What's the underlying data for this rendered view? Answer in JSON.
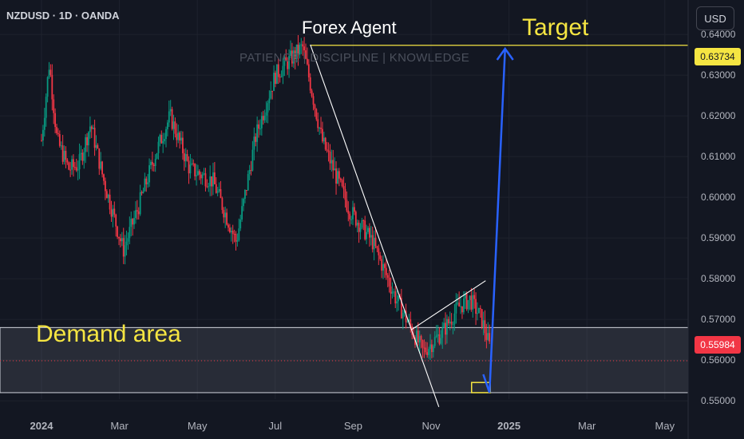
{
  "header": {
    "symbol": "NZDUSD · 1D · OANDA",
    "currency": "USD"
  },
  "watermark": {
    "title": "Forex Agent",
    "subtitle": "PATIENCE | DISCIPLINE | KNOWLEDGE"
  },
  "annotations": {
    "target_label": "Target",
    "demand_label": "Demand area"
  },
  "price_tags": {
    "target": "0.63734",
    "last": "0.55984"
  },
  "colors": {
    "background": "#131722",
    "up_candle": "#089981",
    "down_candle": "#f23645",
    "annotation_text": "#f5e542",
    "target_line": "#f5e542",
    "projection_arrow": "#2962ff",
    "trendlines": "#ffffff"
  },
  "chart_data": {
    "type": "candlestick",
    "title": "",
    "x_ticks": [
      "2024",
      "Mar",
      "May",
      "Jul",
      "Sep",
      "Nov",
      "2025",
      "Mar",
      "May"
    ],
    "y_ticks": [
      "0.55000",
      "0.56000",
      "0.57000",
      "0.58000",
      "0.59000",
      "0.60000",
      "0.61000",
      "0.62000",
      "0.63000",
      "0.64000"
    ],
    "ylim": [
      0.5465,
      0.6465
    ],
    "price_path": [
      [
        0,
        0.614
      ],
      [
        0.1,
        0.633
      ],
      [
        0.2,
        0.614
      ],
      [
        0.35,
        0.607
      ],
      [
        0.48,
        0.608
      ],
      [
        0.63,
        0.618
      ],
      [
        0.8,
        0.604
      ],
      [
        1.05,
        0.587
      ],
      [
        1.25,
        0.598
      ],
      [
        1.45,
        0.61
      ],
      [
        1.65,
        0.62
      ],
      [
        1.9,
        0.607
      ],
      [
        2.2,
        0.604
      ],
      [
        2.5,
        0.589
      ],
      [
        2.75,
        0.615
      ],
      [
        3.0,
        0.63
      ],
      [
        3.35,
        0.637
      ],
      [
        3.6,
        0.614
      ],
      [
        3.95,
        0.597
      ],
      [
        4.25,
        0.589
      ],
      [
        4.55,
        0.575
      ],
      [
        4.9,
        0.562
      ],
      [
        5.15,
        0.567
      ],
      [
        5.35,
        0.573
      ],
      [
        5.5,
        0.575
      ],
      [
        5.65,
        0.57
      ],
      [
        5.75,
        0.5635
      ]
    ],
    "demand_zone": [
      0.552,
      0.568
    ],
    "last_price": 0.55984,
    "target_price": 0.63734,
    "low_box": [
      0.552,
      0.5545
    ],
    "trendlines": [
      {
        "from": [
          3.45,
          0.6375
        ],
        "to": [
          5.1,
          0.5485
        ]
      },
      {
        "from": [
          4.75,
          0.5675
        ],
        "to": [
          5.7,
          0.5795
        ]
      }
    ],
    "projection": {
      "from": [
        5.75,
        0.552
      ],
      "to": [
        5.95,
        0.6365
      ]
    }
  }
}
